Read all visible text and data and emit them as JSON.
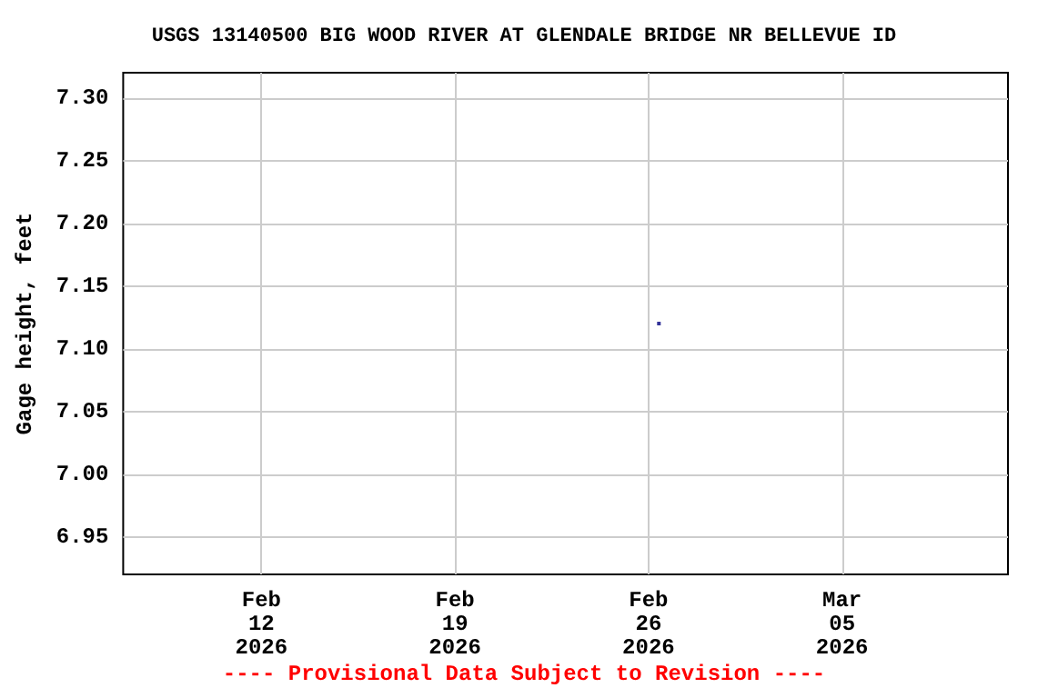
{
  "chart_data": {
    "type": "scatter",
    "title": "USGS 13140500 BIG WOOD RIVER AT GLENDALE BRIDGE NR BELLEVUE ID",
    "ylabel": "Gage height, feet",
    "x": [
      "2026-02-26T09:00"
    ],
    "series": [
      {
        "color": "#000080",
        "values": [
          7.12
        ]
      }
    ],
    "xlim": [
      "2026-02-07",
      "2026-03-11"
    ],
    "xticks": [
      {
        "value": "2026-02-12",
        "label": "Feb\n12\n2026"
      },
      {
        "value": "2026-02-19",
        "label": "Feb\n19\n2026"
      },
      {
        "value": "2026-02-26",
        "label": "Feb\n26\n2026"
      },
      {
        "value": "2026-03-05",
        "label": "Mar\n05\n2026"
      }
    ],
    "ylim": [
      6.92,
      7.32
    ],
    "yticks": [
      {
        "value": 6.95,
        "label": "6.95"
      },
      {
        "value": 7.0,
        "label": "7.00"
      },
      {
        "value": 7.05,
        "label": "7.05"
      },
      {
        "value": 7.1,
        "label": "7.10"
      },
      {
        "value": 7.15,
        "label": "7.15"
      },
      {
        "value": 7.2,
        "label": "7.20"
      },
      {
        "value": 7.25,
        "label": "7.25"
      },
      {
        "value": 7.3,
        "label": "7.30"
      }
    ],
    "grid": true,
    "marker": "square",
    "annotations": [
      "---- Provisional Data Subject to Revision ----"
    ]
  }
}
